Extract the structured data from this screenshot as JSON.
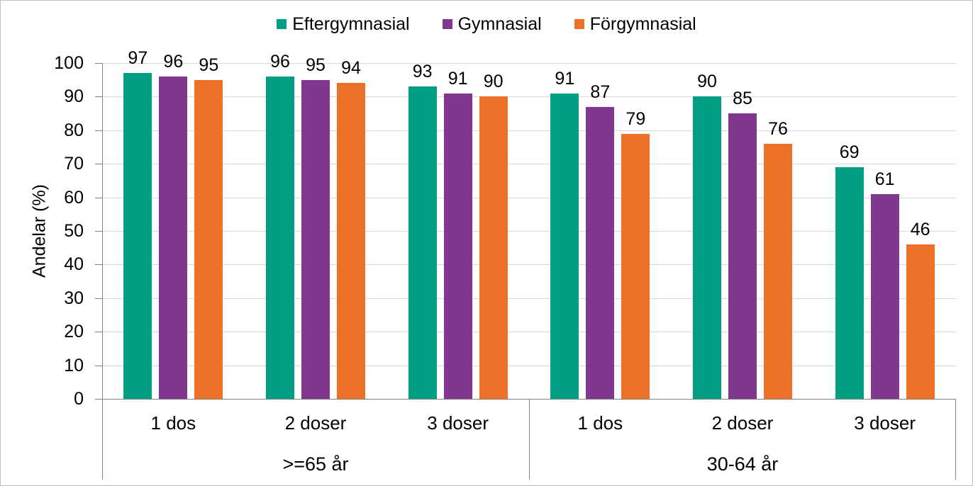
{
  "colors": {
    "eftergymnasial": "#009E82",
    "gymnasial": "#80388E",
    "forgymnasial": "#ED7127",
    "gridline": "#D9D9D9",
    "axis_line": "#808080",
    "frame_border": "#BFBFBF",
    "text": "#000000"
  },
  "chart_data": {
    "type": "bar",
    "title": "",
    "ylabel": "Andelar (%)",
    "xlabel": "",
    "ylim": [
      0,
      100
    ],
    "yticks": [
      0,
      10,
      20,
      30,
      40,
      50,
      60,
      70,
      80,
      90,
      100
    ],
    "grid": true,
    "legend_position": "top",
    "data_labels": true,
    "categories": [
      "1 dos",
      "2 doser",
      "3 doser",
      "1 dos",
      "2 doser",
      "3 doser"
    ],
    "group_labels": [
      ">=65 år",
      "30-64 år"
    ],
    "series": [
      {
        "name": "Eftergymnasial",
        "color": "#009E82",
        "values": [
          97,
          96,
          93,
          91,
          90,
          69
        ]
      },
      {
        "name": "Gymnasial",
        "color": "#80388E",
        "values": [
          96,
          95,
          91,
          87,
          85,
          61
        ]
      },
      {
        "name": "Förgymnasial",
        "color": "#ED7127",
        "values": [
          95,
          94,
          90,
          79,
          76,
          46
        ]
      }
    ]
  }
}
